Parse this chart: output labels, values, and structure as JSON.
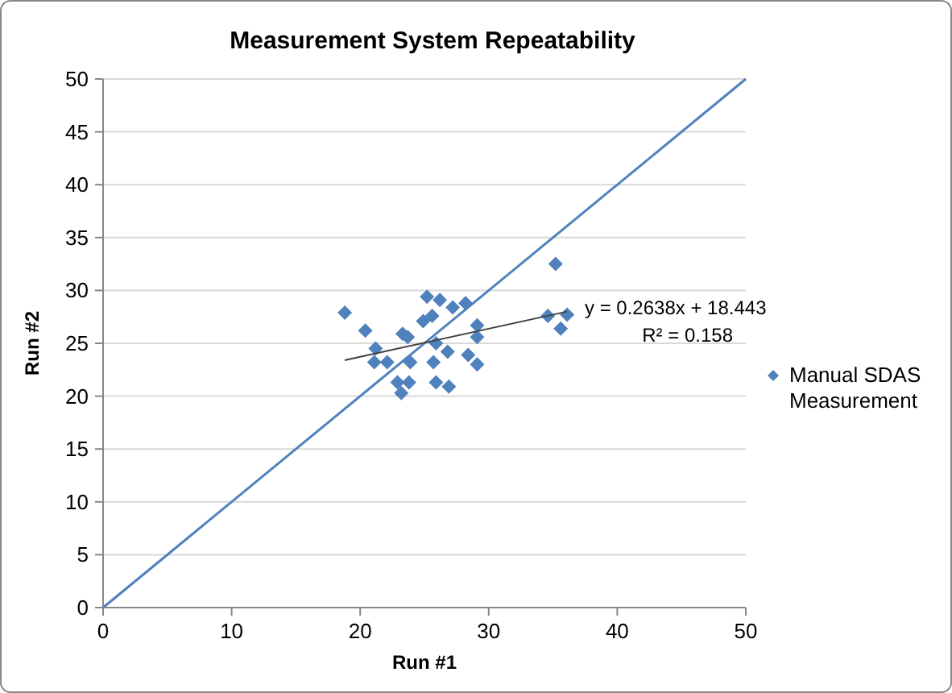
{
  "chart_data": {
    "type": "scatter",
    "title": "Measurement System Repeatability",
    "xlabel": "Run #1",
    "ylabel": "Run #2",
    "xlim": [
      0,
      50
    ],
    "ylim": [
      0,
      50
    ],
    "xticks": [
      0,
      10,
      20,
      30,
      40,
      50
    ],
    "yticks": [
      0,
      5,
      10,
      15,
      20,
      25,
      30,
      35,
      40,
      45,
      50
    ],
    "grid": "y",
    "legend": "right",
    "marker": "diamond",
    "series": [
      {
        "name": "Manual SDAS Measurement",
        "color": "#4f81bd",
        "x": [
          18.8,
          20.4,
          21.2,
          21.1,
          22.1,
          23.3,
          23.7,
          25.2,
          26.2,
          27.2,
          28.2,
          24.9,
          25.6,
          29.1,
          29.1,
          25.9,
          23.9,
          25.7,
          26.8,
          28.4,
          29.1,
          22.9,
          23.8,
          25.9,
          26.9,
          23.2,
          35.2,
          34.6,
          36.1,
          35.6
        ],
        "values": [
          27.9,
          26.2,
          24.5,
          23.2,
          23.2,
          25.9,
          25.6,
          29.4,
          29.1,
          28.4,
          28.8,
          27.1,
          27.6,
          26.7,
          25.6,
          25.0,
          23.2,
          23.2,
          24.2,
          23.9,
          23.0,
          21.3,
          21.3,
          21.3,
          20.9,
          20.3,
          32.5,
          27.6,
          27.7,
          26.4
        ]
      },
      {
        "type": "line",
        "color": "#4f81bd",
        "x": [
          0,
          50
        ],
        "values": [
          0,
          50
        ],
        "marker": "none"
      },
      {
        "type": "line",
        "color": "#404040",
        "x": [
          18.8,
          36.1
        ],
        "values": [
          23.4,
          28.0
        ],
        "marker": "none"
      }
    ],
    "annotations": [
      "y = 0.2638x + 18.443",
      "R² = 0.158"
    ]
  }
}
